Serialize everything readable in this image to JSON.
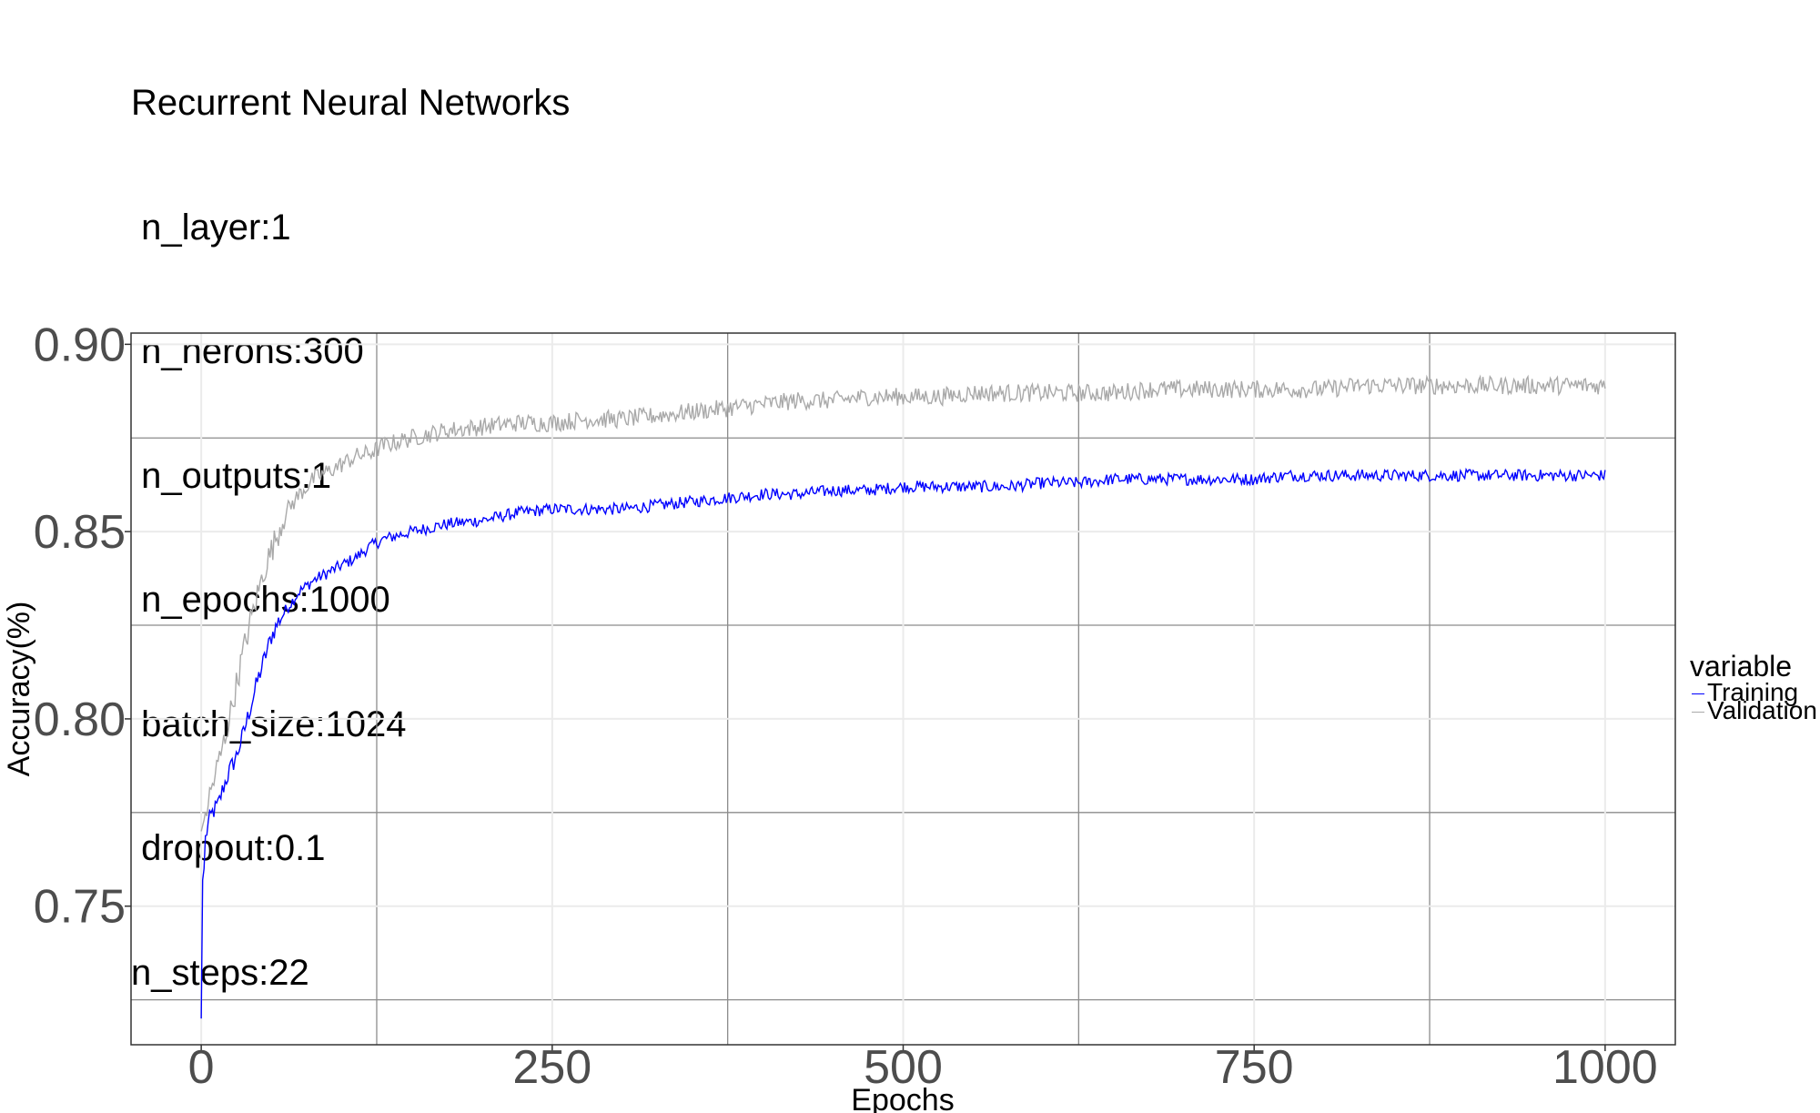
{
  "chart_data": {
    "type": "line",
    "title": "Recurrent Neural Networks",
    "title_lines": [
      "Recurrent Neural Networks",
      " n_layer:1",
      " n_nerons:300",
      " n_outputs:1",
      " n_epochs:1000",
      " batch_size:1024",
      " dropout:0.1",
      "n_steps:22"
    ],
    "xlabel": "Epochs",
    "ylabel": "Accuracy(%)",
    "xlim": [
      -50,
      1050
    ],
    "ylim": [
      0.713,
      0.903
    ],
    "x_ticks": [
      0,
      250,
      500,
      750,
      1000
    ],
    "x_tick_labels": [
      "0",
      "250",
      "500",
      "750",
      "1000"
    ],
    "y_ticks": [
      0.75,
      0.8,
      0.85,
      0.9
    ],
    "y_tick_labels": [
      "0.75",
      "0.80",
      "0.85",
      "0.90"
    ],
    "grid": true,
    "legend": {
      "title": "variable",
      "position": "right"
    },
    "series": [
      {
        "name": "Training",
        "color": "#0000ff",
        "points": [
          [
            0,
            0.72
          ],
          [
            1,
            0.757
          ],
          [
            2,
            0.76
          ],
          [
            3,
            0.768
          ],
          [
            5,
            0.772
          ],
          [
            8,
            0.775
          ],
          [
            12,
            0.777
          ],
          [
            16,
            0.782
          ],
          [
            20,
            0.786
          ],
          [
            25,
            0.79
          ],
          [
            30,
            0.796
          ],
          [
            35,
            0.803
          ],
          [
            40,
            0.81
          ],
          [
            45,
            0.816
          ],
          [
            50,
            0.822
          ],
          [
            55,
            0.826
          ],
          [
            60,
            0.829
          ],
          [
            70,
            0.834
          ],
          [
            80,
            0.837
          ],
          [
            90,
            0.839
          ],
          [
            100,
            0.841
          ],
          [
            110,
            0.843
          ],
          [
            120,
            0.846
          ],
          [
            130,
            0.848
          ],
          [
            140,
            0.849
          ],
          [
            150,
            0.85
          ],
          [
            175,
            0.852
          ],
          [
            200,
            0.853
          ],
          [
            225,
            0.855
          ],
          [
            250,
            0.856
          ],
          [
            275,
            0.856
          ],
          [
            300,
            0.856
          ],
          [
            325,
            0.857
          ],
          [
            350,
            0.858
          ],
          [
            375,
            0.859
          ],
          [
            400,
            0.86
          ],
          [
            425,
            0.86
          ],
          [
            450,
            0.861
          ],
          [
            475,
            0.861
          ],
          [
            500,
            0.862
          ],
          [
            525,
            0.862
          ],
          [
            550,
            0.862
          ],
          [
            575,
            0.862
          ],
          [
            600,
            0.863
          ],
          [
            625,
            0.863
          ],
          [
            650,
            0.864
          ],
          [
            675,
            0.864
          ],
          [
            700,
            0.864
          ],
          [
            725,
            0.864
          ],
          [
            750,
            0.864
          ],
          [
            775,
            0.865
          ],
          [
            800,
            0.865
          ],
          [
            825,
            0.865
          ],
          [
            850,
            0.865
          ],
          [
            875,
            0.865
          ],
          [
            900,
            0.865
          ],
          [
            925,
            0.865
          ],
          [
            950,
            0.865
          ],
          [
            975,
            0.865
          ],
          [
            1000,
            0.865
          ]
        ]
      },
      {
        "name": "Validation",
        "color": "#a9a9a9",
        "points": [
          [
            0,
            0.77
          ],
          [
            2,
            0.773
          ],
          [
            5,
            0.778
          ],
          [
            10,
            0.785
          ],
          [
            15,
            0.792
          ],
          [
            20,
            0.8
          ],
          [
            25,
            0.809
          ],
          [
            30,
            0.818
          ],
          [
            35,
            0.826
          ],
          [
            40,
            0.833
          ],
          [
            45,
            0.84
          ],
          [
            50,
            0.845
          ],
          [
            55,
            0.85
          ],
          [
            60,
            0.855
          ],
          [
            70,
            0.86
          ],
          [
            80,
            0.864
          ],
          [
            90,
            0.866
          ],
          [
            100,
            0.868
          ],
          [
            110,
            0.87
          ],
          [
            120,
            0.871
          ],
          [
            130,
            0.873
          ],
          [
            140,
            0.874
          ],
          [
            150,
            0.875
          ],
          [
            175,
            0.877
          ],
          [
            200,
            0.878
          ],
          [
            225,
            0.879
          ],
          [
            250,
            0.879
          ],
          [
            275,
            0.88
          ],
          [
            300,
            0.88
          ],
          [
            325,
            0.881
          ],
          [
            350,
            0.882
          ],
          [
            375,
            0.883
          ],
          [
            400,
            0.884
          ],
          [
            425,
            0.885
          ],
          [
            450,
            0.885
          ],
          [
            475,
            0.886
          ],
          [
            500,
            0.886
          ],
          [
            525,
            0.886
          ],
          [
            550,
            0.887
          ],
          [
            575,
            0.887
          ],
          [
            600,
            0.887
          ],
          [
            625,
            0.887
          ],
          [
            650,
            0.887
          ],
          [
            675,
            0.888
          ],
          [
            700,
            0.888
          ],
          [
            725,
            0.888
          ],
          [
            750,
            0.888
          ],
          [
            775,
            0.888
          ],
          [
            800,
            0.888
          ],
          [
            825,
            0.889
          ],
          [
            850,
            0.889
          ],
          [
            875,
            0.889
          ],
          [
            900,
            0.889
          ],
          [
            925,
            0.889
          ],
          [
            950,
            0.889
          ],
          [
            975,
            0.889
          ],
          [
            1000,
            0.889
          ]
        ]
      }
    ]
  }
}
